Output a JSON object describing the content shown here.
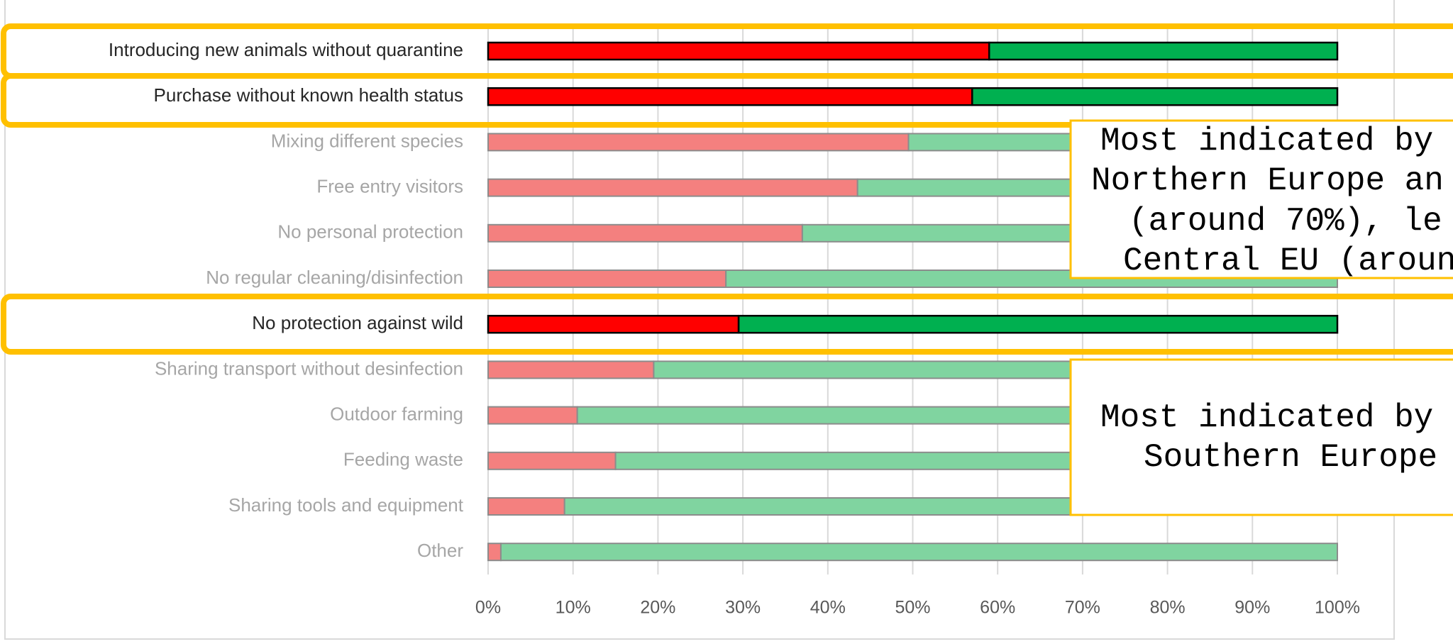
{
  "chart_data": {
    "type": "stacked-barh",
    "categories": [
      "Introducing new animals without quarantine",
      "Purchase without known health status",
      "Mixing different species",
      "Free entry visitors",
      "No personal protection",
      "No regular cleaning/disinfection",
      "No protection against wild",
      "Sharing transport without desinfection",
      "Outdoor farming",
      "Feeding waste",
      "Sharing tools and equipment",
      "Other"
    ],
    "series": [
      {
        "color": "#ff0000",
        "faded_color": "#f4807f",
        "values": [
          59,
          57,
          49.5,
          43.5,
          37,
          28,
          29.5,
          19.5,
          10.5,
          15,
          9,
          1.5
        ]
      },
      {
        "color": "#00b050",
        "faded_color": "#80d4a0",
        "values": [
          41,
          43,
          50.5,
          56.5,
          63,
          72,
          70.5,
          80.5,
          89.5,
          85,
          91,
          98.5
        ]
      }
    ],
    "xlim": [
      0,
      100
    ],
    "xticks": [
      {
        "value": 0,
        "label": "0%"
      },
      {
        "value": 10,
        "label": "10%"
      },
      {
        "value": 20,
        "label": "20%"
      },
      {
        "value": 30,
        "label": "30%"
      },
      {
        "value": 40,
        "label": "40%"
      },
      {
        "value": 50,
        "label": "50%"
      },
      {
        "value": 60,
        "label": "60%"
      },
      {
        "value": 70,
        "label": "70%"
      },
      {
        "value": 80,
        "label": "80%"
      },
      {
        "value": 90,
        "label": "90%"
      },
      {
        "value": 100,
        "label": "100%"
      }
    ],
    "grid": true,
    "highlight": [
      0,
      1,
      6
    ],
    "highlight_color": "#ffc000",
    "annotations": [
      {
        "lines": [
          "Most indicated by",
          "Northern Europe an",
          "(around 70%), le",
          "Central EU (aroun"
        ]
      },
      {
        "lines": [
          "Most indicated by",
          "Southern Europe"
        ]
      }
    ]
  }
}
